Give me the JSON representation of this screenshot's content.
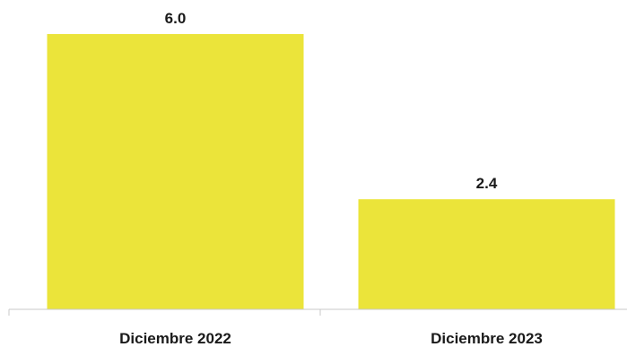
{
  "chart_data": {
    "type": "bar",
    "categories": [
      "Diciembre 2022",
      "Diciembre 2023"
    ],
    "values": [
      6.0,
      2.4
    ],
    "data_labels": [
      "6.0",
      "2.4"
    ],
    "title": "",
    "xlabel": "",
    "ylabel": "",
    "ylim": [
      0,
      6.0
    ],
    "grid": false,
    "legend": "none",
    "bar_color": "#ebe43a"
  }
}
